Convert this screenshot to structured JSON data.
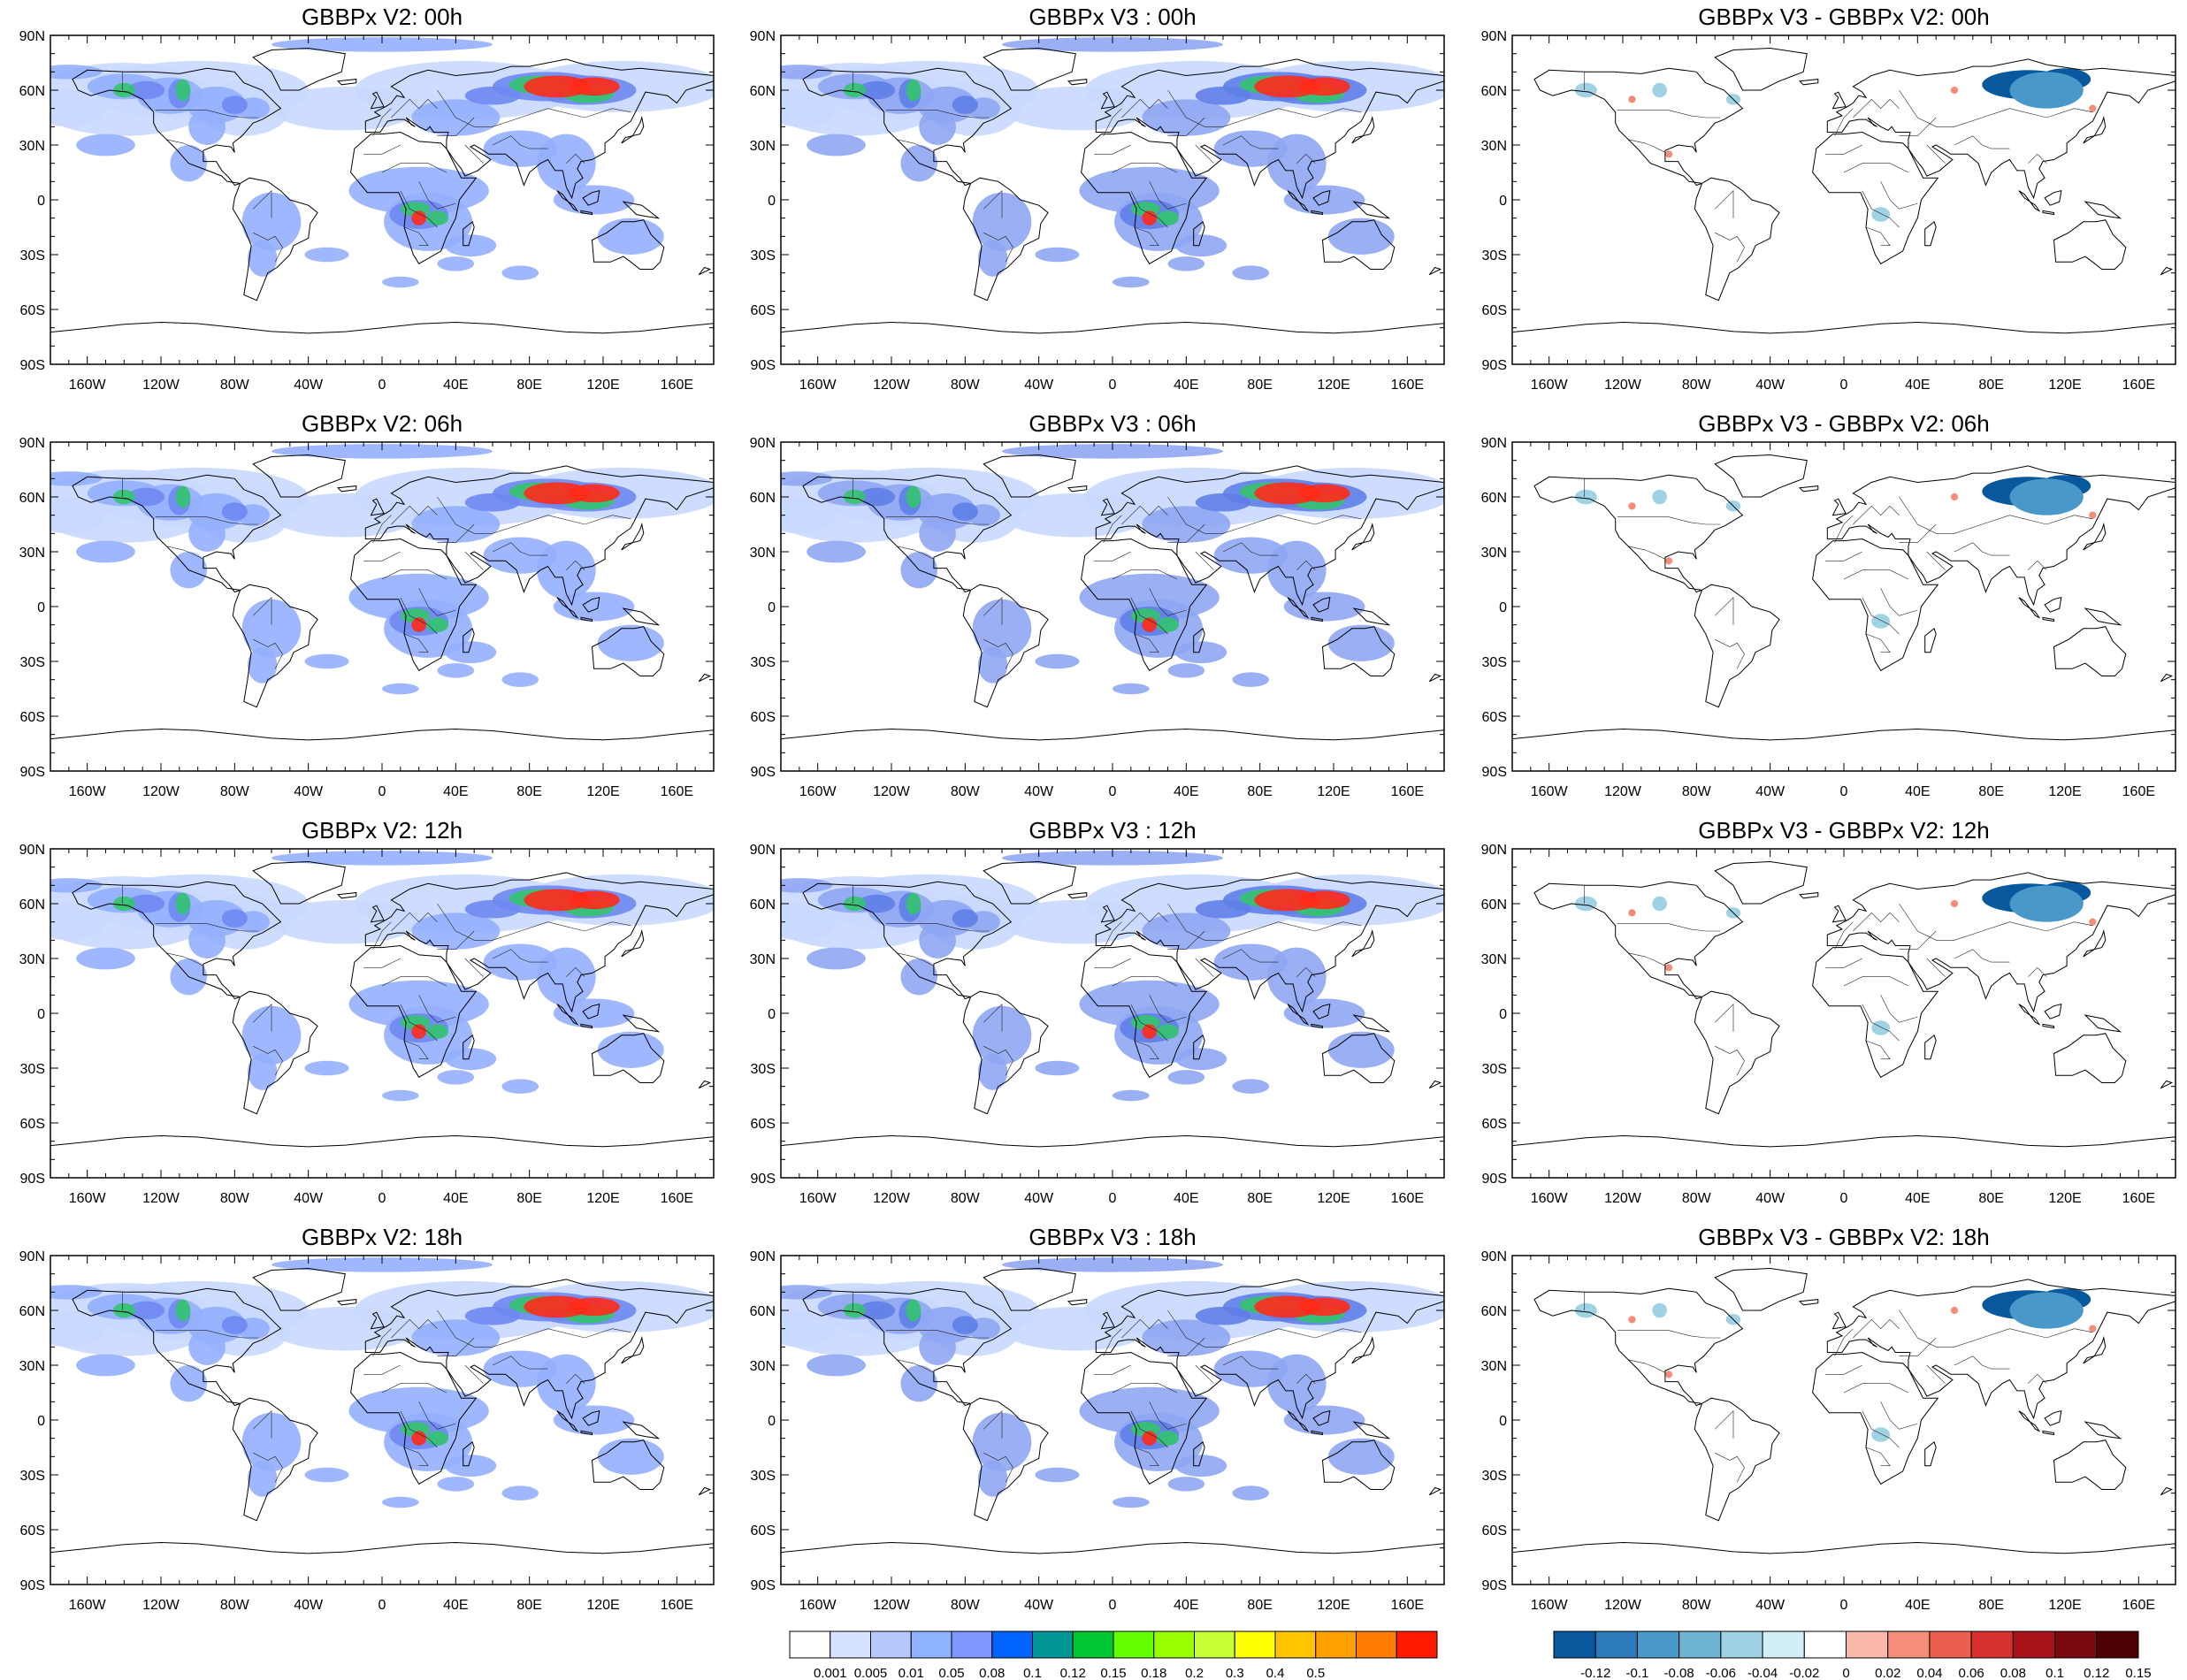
{
  "figure": {
    "lon_labels": [
      "160W",
      "120W",
      "80W",
      "40W",
      "0",
      "40E",
      "80E",
      "120E",
      "160E"
    ],
    "lat_labels": [
      "90N",
      "60N",
      "30N",
      "0",
      "30S",
      "60S",
      "90S"
    ],
    "rows": [
      {
        "time": "00h",
        "titles": [
          "GBBPx V2: 00h",
          "GBBPx V3 : 00h",
          "GBBPx V3 - GBBPx V2: 00h"
        ]
      },
      {
        "time": "06h",
        "titles": [
          "GBBPx V2: 06h",
          "GBBPx V3 : 06h",
          "GBBPx V3 - GBBPx V2: 06h"
        ]
      },
      {
        "time": "12h",
        "titles": [
          "GBBPx V2: 12h",
          "GBBPx V3 : 12h",
          "GBBPx V3 - GBBPx V2: 12h"
        ]
      },
      {
        "time": "18h",
        "titles": [
          "GBBPx V2: 18h",
          "GBBPx V3 : 18h",
          "GBBPx V3 - GBBPx V2: 18h"
        ]
      }
    ]
  },
  "colorbar_main": {
    "colors": [
      "#ffffff",
      "#d6e2ff",
      "#b5c9ff",
      "#8eb2ff",
      "#7f96ff",
      "#0063ff",
      "#009696",
      "#00c633",
      "#63ff00",
      "#96ff00",
      "#c6ff33",
      "#ffff00",
      "#ffc600",
      "#ffa000",
      "#ff7c00",
      "#ff1900"
    ],
    "labels": [
      "0.001",
      "0.005",
      "0.01",
      "0.05",
      "0.08",
      "0.1",
      "0.12",
      "0.15",
      "0.18",
      "0.2",
      "0.3",
      "0.4",
      "0.5"
    ]
  },
  "colorbar_diff": {
    "colors": [
      "#08589e",
      "#2b7bb8",
      "#4a98c9",
      "#6eb5d4",
      "#9fd3e3",
      "#d2eef7",
      "#ffffff",
      "#f8b9a8",
      "#f58e78",
      "#ec5f4f",
      "#d8322e",
      "#a8131a",
      "#7a0a10",
      "#4f0005"
    ],
    "labels": [
      "-0.12",
      "-0.1",
      "-0.08",
      "-0.06",
      "-0.04",
      "-0.02",
      "0",
      "0.02",
      "0.04",
      "0.06",
      "0.08",
      "0.1",
      "0.12",
      "0.15"
    ]
  }
}
